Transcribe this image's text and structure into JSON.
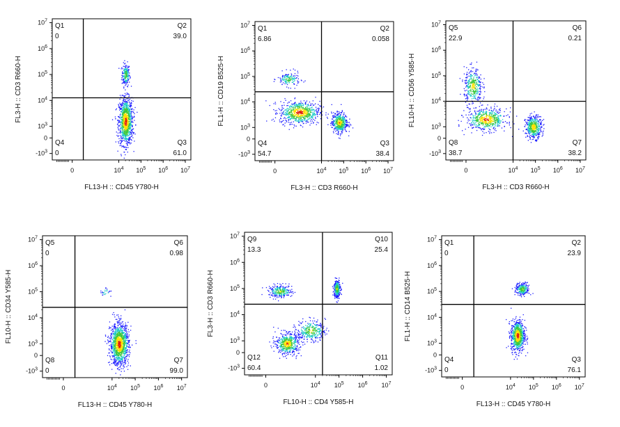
{
  "colors": {
    "density_low": "#1a1aff",
    "density_mid": "#19c8c8",
    "density_mid2": "#3cc83c",
    "density_high": "#ffe000",
    "density_peak": "#e02010",
    "axis": "#000000"
  },
  "chart_data": [
    {
      "type": "scatter",
      "xlabel": "FL13-H :: CD45 Y780-H",
      "ylabel": "FL3-H :: CD3 R660-H",
      "x_ticks": [
        "0",
        "10^4",
        "10^5",
        "10^6",
        "10^7"
      ],
      "y_ticks": [
        "-10^3",
        "0",
        "10^3",
        "10^4",
        "10^5",
        "10^6",
        "10^7"
      ],
      "x_gate": 2.4,
      "y_gate": 4.1,
      "quadrants": [
        {
          "name": "Q1",
          "value": "0",
          "pos": "tl"
        },
        {
          "name": "Q2",
          "value": "39.0",
          "pos": "tr"
        },
        {
          "name": "Q3",
          "value": "61.0",
          "pos": "br"
        },
        {
          "name": "Q4",
          "value": "0",
          "pos": "bl"
        }
      ],
      "populations": [
        {
          "x": 4.3,
          "y": 5.0,
          "sx": 0.09,
          "sy": 0.22,
          "n": 200
        },
        {
          "x": 4.3,
          "y": 3.2,
          "sx": 0.16,
          "sy": 0.45,
          "n": 1000
        }
      ]
    },
    {
      "type": "scatter",
      "xlabel": "FL3-H :: CD3 R660-H",
      "ylabel": "FL1-H :: CD19 B525-H",
      "x_ticks": [
        "0",
        "10^4",
        "10^5",
        "10^6",
        "10^7"
      ],
      "y_ticks": [
        "-10^3",
        "0",
        "10^3",
        "10^4",
        "10^5",
        "10^6",
        "10^7"
      ],
      "x_gate": 4.0,
      "y_gate": 4.4,
      "quadrants": [
        {
          "name": "Q1",
          "value": "6.86",
          "pos": "tl"
        },
        {
          "name": "Q2",
          "value": "0.058",
          "pos": "tr"
        },
        {
          "name": "Q3",
          "value": "38.4",
          "pos": "br"
        },
        {
          "name": "Q4",
          "value": "54.7",
          "pos": "bl"
        }
      ],
      "populations": [
        {
          "x": 2.5,
          "y": 4.9,
          "sx": 0.25,
          "sy": 0.14,
          "n": 150
        },
        {
          "x": 3.0,
          "y": 3.6,
          "sx": 0.45,
          "sy": 0.22,
          "n": 700
        },
        {
          "x": 4.8,
          "y": 3.2,
          "sx": 0.18,
          "sy": 0.2,
          "n": 450
        }
      ]
    },
    {
      "type": "scatter",
      "xlabel": "FL3-H :: CD3 R660-H",
      "ylabel": "FL10-H :: CD56 Y585-H",
      "x_ticks": [
        "0",
        "10^4",
        "10^5",
        "10^6",
        "10^7"
      ],
      "y_ticks": [
        "-10^3",
        "0",
        "10^3",
        "10^4",
        "10^5",
        "10^6",
        "10^7"
      ],
      "x_gate": 4.0,
      "y_gate": 4.0,
      "quadrants": [
        {
          "name": "Q5",
          "value": "22.9",
          "pos": "tl"
        },
        {
          "name": "Q6",
          "value": "0.21",
          "pos": "tr"
        },
        {
          "name": "Q7",
          "value": "38.2",
          "pos": "br"
        },
        {
          "name": "Q8",
          "value": "38.7",
          "pos": "bl"
        }
      ],
      "populations": [
        {
          "x": 2.2,
          "y": 4.6,
          "sx": 0.2,
          "sy": 0.35,
          "n": 350
        },
        {
          "x": 2.8,
          "y": 3.3,
          "sx": 0.45,
          "sy": 0.22,
          "n": 550
        },
        {
          "x": 4.9,
          "y": 3.0,
          "sx": 0.18,
          "sy": 0.22,
          "n": 450
        }
      ]
    },
    {
      "type": "scatter",
      "xlabel": "FL13-H :: CD45 Y780-H",
      "ylabel": "FL10-H :: CD34 Y585-H",
      "x_ticks": [
        "0",
        "10^4",
        "10^5",
        "10^6",
        "10^7"
      ],
      "y_ticks": [
        "-10^3",
        "0",
        "10^3",
        "10^4",
        "10^5",
        "10^6",
        "10^7"
      ],
      "x_gate": 2.4,
      "y_gate": 4.4,
      "quadrants": [
        {
          "name": "Q5",
          "value": "0",
          "pos": "tl"
        },
        {
          "name": "Q6",
          "value": "0.98",
          "pos": "tr"
        },
        {
          "name": "Q7",
          "value": "99.0",
          "pos": "br"
        },
        {
          "name": "Q8",
          "value": "0",
          "pos": "bl"
        }
      ],
      "populations": [
        {
          "x": 3.7,
          "y": 5.0,
          "sx": 0.12,
          "sy": 0.12,
          "n": 25
        },
        {
          "x": 4.3,
          "y": 3.0,
          "sx": 0.2,
          "sy": 0.4,
          "n": 1200
        }
      ]
    },
    {
      "type": "scatter",
      "xlabel": "FL10-H :: CD4 Y585-H",
      "ylabel": "FL3-H :: CD3 R660-H",
      "x_ticks": [
        "0",
        "10^4",
        "10^5",
        "10^6",
        "10^7"
      ],
      "y_ticks": [
        "-10^3",
        "0",
        "10^3",
        "10^4",
        "10^5",
        "10^6",
        "10^7"
      ],
      "x_gate": 4.3,
      "y_gate": 4.4,
      "quadrants": [
        {
          "name": "Q9",
          "value": "13.3",
          "pos": "tl"
        },
        {
          "name": "Q10",
          "value": "25.4",
          "pos": "tr"
        },
        {
          "name": "Q11",
          "value": "1.02",
          "pos": "br"
        },
        {
          "name": "Q12",
          "value": "60.4",
          "pos": "bl"
        }
      ],
      "populations": [
        {
          "x": 2.5,
          "y": 4.9,
          "sx": 0.25,
          "sy": 0.12,
          "n": 250
        },
        {
          "x": 4.9,
          "y": 5.0,
          "sx": 0.07,
          "sy": 0.18,
          "n": 300
        },
        {
          "x": 2.8,
          "y": 2.9,
          "sx": 0.25,
          "sy": 0.2,
          "n": 500
        },
        {
          "x": 3.8,
          "y": 3.4,
          "sx": 0.3,
          "sy": 0.2,
          "n": 300
        }
      ]
    },
    {
      "type": "scatter",
      "xlabel": "FL13-H :: CD45 Y780-H",
      "ylabel": "FL1-H :: CD14 B525-H",
      "x_ticks": [
        "0",
        "10^4",
        "10^5",
        "10^6",
        "10^7"
      ],
      "y_ticks": [
        "-10^3",
        "0",
        "10^3",
        "10^4",
        "10^5",
        "10^6",
        "10^7"
      ],
      "x_gate": 2.4,
      "y_gate": 4.5,
      "quadrants": [
        {
          "name": "Q1",
          "value": "0",
          "pos": "tl"
        },
        {
          "name": "Q2",
          "value": "23.9",
          "pos": "tr"
        },
        {
          "name": "Q3",
          "value": "76.1",
          "pos": "br"
        },
        {
          "name": "Q4",
          "value": "0",
          "pos": "bl"
        }
      ],
      "populations": [
        {
          "x": 4.5,
          "y": 5.1,
          "sx": 0.15,
          "sy": 0.12,
          "n": 250
        },
        {
          "x": 4.3,
          "y": 3.3,
          "sx": 0.15,
          "sy": 0.3,
          "n": 750
        }
      ]
    }
  ]
}
